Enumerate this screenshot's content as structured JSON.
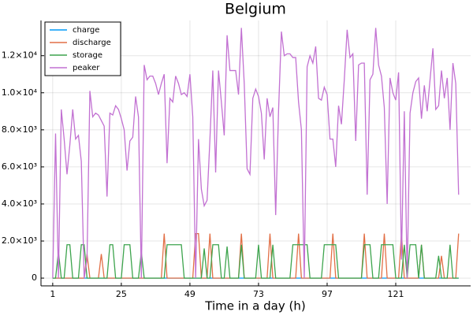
{
  "chart_data": {
    "type": "line",
    "title": "Belgium",
    "xlabel": "Time in a day (h)",
    "x": [
      1,
      2,
      3,
      4,
      5,
      6,
      7,
      8,
      9,
      10,
      11,
      12,
      13,
      14,
      15,
      16,
      17,
      18,
      19,
      20,
      21,
      22,
      23,
      24,
      25,
      26,
      27,
      28,
      29,
      30,
      31,
      32,
      33,
      34,
      35,
      36,
      37,
      38,
      39,
      40,
      41,
      42,
      43,
      44,
      45,
      46,
      47,
      48,
      49,
      50,
      51,
      52,
      53,
      54,
      55,
      56,
      57,
      58,
      59,
      60,
      61,
      62,
      63,
      64,
      65,
      66,
      67,
      68,
      69,
      70,
      71,
      72,
      73,
      74,
      75,
      76,
      77,
      78,
      79,
      80,
      81,
      82,
      83,
      84,
      85,
      86,
      87,
      88,
      89,
      90,
      91,
      92,
      93,
      94,
      95,
      96,
      97,
      98,
      99,
      100,
      101,
      102,
      103,
      104,
      105,
      106,
      107,
      108,
      109,
      110,
      111,
      112,
      113,
      114,
      115,
      116,
      117,
      118,
      119,
      120,
      121,
      122,
      123,
      124,
      125,
      126,
      127,
      128,
      129,
      130,
      131,
      132,
      133,
      134,
      135,
      136,
      137,
      138,
      139,
      140,
      141,
      142,
      143
    ],
    "series": [
      {
        "name": "charge",
        "color": "#009af9",
        "values": [
          0,
          0,
          0,
          0,
          0,
          0,
          0,
          0,
          0,
          0,
          0,
          0,
          0,
          0,
          0,
          0,
          0,
          0,
          0,
          0,
          0,
          0,
          0,
          0,
          0,
          0,
          0,
          0,
          0,
          0,
          0,
          0,
          0,
          0,
          0,
          0,
          0,
          0,
          0,
          0,
          0,
          0,
          0,
          0,
          0,
          0,
          0,
          0,
          0,
          0,
          0,
          0,
          0,
          0,
          0,
          0,
          0,
          0,
          0,
          0,
          0,
          0,
          0,
          0,
          0,
          0,
          0,
          0,
          0,
          0,
          0,
          0,
          0,
          0,
          0,
          0,
          0,
          0,
          0,
          0,
          0,
          0,
          0,
          0,
          0,
          0,
          0,
          0,
          0,
          0,
          0,
          0,
          0,
          0,
          0,
          0,
          0,
          0,
          0,
          0,
          0,
          0,
          0,
          0,
          0,
          0,
          0,
          0,
          0,
          0,
          0,
          0,
          0,
          0,
          0,
          0,
          0,
          0,
          0,
          0,
          0,
          0,
          0,
          0,
          0,
          0,
          0,
          0,
          0,
          0,
          0,
          0,
          0,
          0,
          0,
          0,
          0,
          0,
          0,
          0,
          0,
          0,
          0
        ]
      },
      {
        "name": "discharge",
        "color": "#e26f46",
        "values": [
          0,
          0,
          0,
          0,
          0,
          0,
          0,
          0,
          0,
          0,
          0,
          0,
          1300,
          0,
          0,
          0,
          0,
          1300,
          0,
          0,
          0,
          0,
          0,
          0,
          0,
          0,
          0,
          0,
          0,
          0,
          0,
          0,
          0,
          0,
          0,
          0,
          0,
          0,
          0,
          2400,
          0,
          0,
          0,
          0,
          0,
          0,
          0,
          0,
          0,
          0,
          2400,
          2400,
          0,
          0,
          0,
          2400,
          0,
          0,
          0,
          0,
          0,
          0,
          0,
          0,
          0,
          0,
          2400,
          0,
          0,
          0,
          0,
          0,
          0,
          0,
          0,
          0,
          2400,
          0,
          0,
          0,
          0,
          0,
          0,
          0,
          0,
          0,
          2400,
          0,
          0,
          0,
          0,
          0,
          0,
          0,
          0,
          0,
          0,
          0,
          2400,
          0,
          0,
          0,
          0,
          0,
          0,
          0,
          0,
          0,
          0,
          2400,
          0,
          0,
          0,
          0,
          0,
          0,
          2400,
          0,
          0,
          0,
          0,
          0,
          2400,
          0,
          0,
          0,
          0,
          0,
          0,
          1800,
          0,
          0,
          0,
          0,
          0,
          0,
          1200,
          0,
          0,
          0,
          0,
          0,
          2400
        ]
      },
      {
        "name": "storage",
        "color": "#3da44d",
        "values": [
          0,
          0,
          1400,
          0,
          0,
          1800,
          1800,
          0,
          0,
          0,
          1800,
          1800,
          0,
          0,
          0,
          0,
          0,
          0,
          0,
          0,
          1800,
          1800,
          0,
          0,
          0,
          1800,
          1800,
          1800,
          0,
          0,
          0,
          1400,
          0,
          0,
          0,
          0,
          0,
          0,
          0,
          0,
          1800,
          1800,
          1800,
          1800,
          1800,
          1800,
          0,
          0,
          0,
          0,
          0,
          0,
          0,
          1600,
          0,
          0,
          1800,
          1800,
          1800,
          0,
          0,
          1700,
          0,
          0,
          0,
          0,
          1800,
          0,
          0,
          0,
          0,
          0,
          1800,
          0,
          0,
          0,
          0,
          1800,
          0,
          0,
          0,
          0,
          0,
          0,
          1800,
          1800,
          1800,
          1800,
          1800,
          1800,
          0,
          0,
          0,
          0,
          0,
          1800,
          1800,
          1800,
          1800,
          1800,
          0,
          0,
          0,
          0,
          0,
          0,
          0,
          0,
          0,
          1800,
          1800,
          1800,
          0,
          0,
          0,
          1800,
          1800,
          1800,
          1800,
          1800,
          0,
          0,
          0,
          1800,
          0,
          1800,
          1800,
          1800,
          0,
          1800,
          0,
          0,
          0,
          0,
          0,
          1200,
          0,
          0,
          0,
          1800,
          0,
          0,
          0
        ]
      },
      {
        "name": "peaker",
        "color": "#c271d2",
        "values": [
          0,
          7800,
          0,
          9100,
          7500,
          5600,
          7200,
          9100,
          7500,
          7700,
          6300,
          0,
          1000,
          10100,
          8700,
          8900,
          8800,
          8500,
          8200,
          4400,
          8900,
          8800,
          9300,
          9100,
          8600,
          8000,
          5800,
          7400,
          7600,
          9800,
          8700,
          0,
          11500,
          10700,
          10900,
          10900,
          10500,
          9900,
          10500,
          11000,
          6200,
          9700,
          9500,
          10900,
          10500,
          9900,
          10000,
          9800,
          11000,
          8700,
          0,
          7500,
          4800,
          3900,
          4200,
          7500,
          11200,
          5700,
          11200,
          9500,
          7700,
          13100,
          11200,
          11200,
          11200,
          9900,
          13500,
          10500,
          5900,
          5600,
          9700,
          10200,
          9800,
          8900,
          6400,
          9700,
          8700,
          9200,
          3400,
          9000,
          13300,
          12000,
          12100,
          12100,
          11900,
          11900,
          9500,
          8000,
          0,
          11400,
          12000,
          11600,
          12500,
          9700,
          9600,
          10300,
          9900,
          7500,
          7500,
          6000,
          9300,
          8300,
          10700,
          13400,
          11900,
          12100,
          7400,
          11500,
          11600,
          11600,
          4500,
          10700,
          11000,
          13500,
          11500,
          10900,
          9200,
          4000,
          10800,
          10000,
          9600,
          11100,
          1000,
          9000,
          0,
          8900,
          10000,
          10600,
          10800,
          8600,
          10400,
          9000,
          10700,
          12400,
          9100,
          9300,
          11200,
          9700,
          10800,
          8000,
          11600,
          10500,
          4500
        ]
      }
    ],
    "xlim": [
      -3.1,
      147.2
    ],
    "xticks": [
      1,
      25,
      49,
      73,
      97,
      121
    ],
    "ylim": [
      -420,
      13900
    ],
    "yticks": [
      0,
      {
        "value": 2000,
        "label": "2.0×10³"
      },
      {
        "value": 4000,
        "label": "4.0×10³"
      },
      {
        "value": 6000,
        "label": "6.0×10³"
      },
      {
        "value": 8000,
        "label": "8.0×10³"
      },
      {
        "value": 10000,
        "label": "1.0×10⁴"
      },
      {
        "value": 12000,
        "label": "1.2×10⁴"
      }
    ],
    "grid": true,
    "legend": "top-left"
  }
}
